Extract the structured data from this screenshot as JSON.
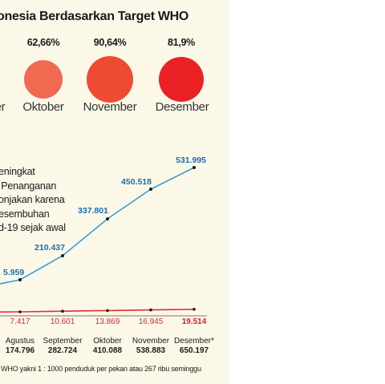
{
  "header": {
    "title": "onesia Berdasarkan Target WHO"
  },
  "months_summary": [
    {
      "pct": "",
      "label": "er",
      "color": "#f07060"
    },
    {
      "pct": "62,66%",
      "label": "Oktober",
      "color": "#f06a52"
    },
    {
      "pct": "90,64%",
      "label": "November",
      "color": "#ef4b33"
    },
    {
      "pct": "81,9%",
      "label": "Desember",
      "color": "#ea2226"
    }
  ],
  "note": "eningkat\n Penanganan\nonjakan karena\nesembuhan\nd-19 sejak awal",
  "footer": "l WHO yakni 1 : 1000 penduduk per pekan atau 267 ribu seminggu",
  "chart_data": {
    "type": "line",
    "colors": {
      "blue": "#3a9fd6",
      "red": "#e03030",
      "axis": "#777777"
    },
    "series": [
      {
        "points": [
          {
            "label": "5.959",
            "color": "#1a6fae"
          },
          {
            "label": "210.437",
            "color": "#1a6fae"
          },
          {
            "label": "337.801",
            "color": "#1a6fae"
          },
          {
            "label": "450.518",
            "color": "#1a6fae"
          },
          {
            "label": "531.995",
            "color": "#1a6fae"
          }
        ]
      },
      {
        "points": [
          {
            "label": "7.417",
            "color": "#d03030"
          },
          {
            "label": "10.601",
            "color": "#d03030"
          },
          {
            "label": "13.869",
            "color": "#d03030"
          },
          {
            "label": "16.945",
            "color": "#d03030"
          },
          {
            "label": "19.514",
            "color": "#e01e1e",
            "bold": true
          }
        ]
      }
    ],
    "categories": [
      {
        "name": "Agustus",
        "value": "174.796"
      },
      {
        "name": "September",
        "value": "282.724"
      },
      {
        "name": "Oktober",
        "value": "410.088"
      },
      {
        "name": "November",
        "value": "538.883"
      },
      {
        "name": "Desember*",
        "value": "650.197"
      }
    ]
  }
}
